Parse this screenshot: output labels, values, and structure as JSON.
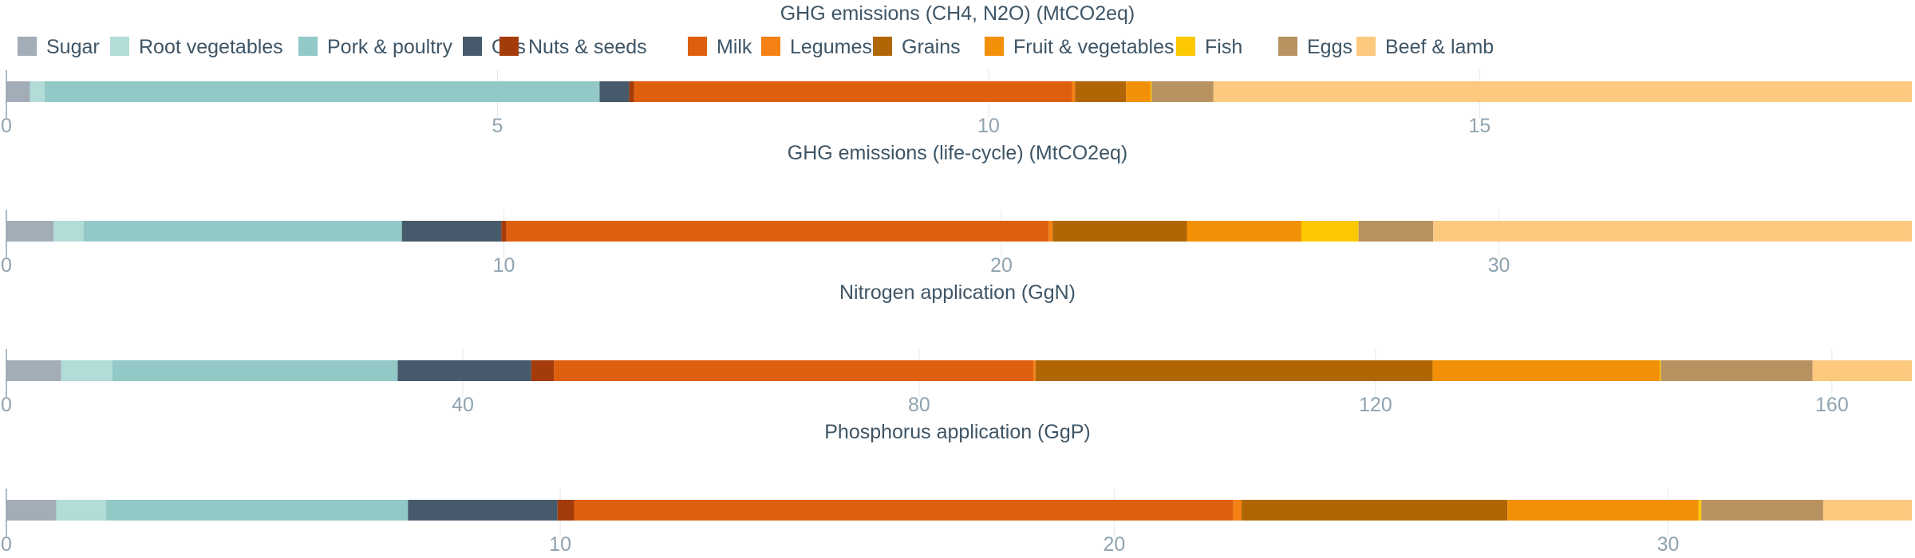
{
  "legend": [
    {
      "name": "Sugar",
      "color": "#a3adb8"
    },
    {
      "name": "Root vegetables",
      "color": "#b2dcd8"
    },
    {
      "name": "Pork & poultry",
      "color": "#92c8c6"
    },
    {
      "name": "Oils",
      "color": "#465a6c"
    },
    {
      "name": "Nuts & seeds",
      "color": "#a33b0a"
    },
    {
      "name": "Milk",
      "color": "#de5f0d"
    },
    {
      "name": "Legumes",
      "color": "#f58114"
    },
    {
      "name": "Grains",
      "color": "#b06605"
    },
    {
      "name": "Fruit & vegetables",
      "color": "#f29108"
    },
    {
      "name": "Fish",
      "color": "#fcc900"
    },
    {
      "name": "Eggs",
      "color": "#b89260"
    },
    {
      "name": "Beef & lamb",
      "color": "#fcc97f"
    }
  ],
  "chart_data": [
    {
      "type": "bar",
      "orientation": "horizontal-stacked",
      "title": "GHG emissions (CH4, N2O) (MtCO2eq)",
      "xlim": [
        0,
        19.4
      ],
      "ticks": [
        0,
        5,
        10,
        15
      ],
      "categories": [
        "Sugar",
        "Root vegetables",
        "Pork & poultry",
        "Oils",
        "Nuts & seeds",
        "Milk",
        "Legumes",
        "Grains",
        "Fruit & vegetables",
        "Fish",
        "Eggs",
        "Beef & lamb"
      ],
      "values": [
        0.24,
        0.15,
        5.65,
        0.3,
        0.05,
        4.46,
        0.03,
        0.52,
        0.25,
        0.01,
        0.63,
        7.11
      ]
    },
    {
      "type": "bar",
      "orientation": "horizontal-stacked",
      "title": "GHG emissions (life-cycle) (MtCO2eq)",
      "xlim": [
        0,
        38.3
      ],
      "ticks": [
        0,
        10,
        20,
        30
      ],
      "categories": [
        "Sugar",
        "Root vegetables",
        "Pork & poultry",
        "Oils",
        "Nuts & seeds",
        "Milk",
        "Legumes",
        "Grains",
        "Fruit & vegetables",
        "Fish",
        "Eggs",
        "Beef & lamb"
      ],
      "values": [
        0.95,
        0.6,
        6.4,
        2.0,
        0.1,
        10.9,
        0.08,
        2.7,
        2.3,
        1.15,
        1.5,
        9.62
      ]
    },
    {
      "type": "bar",
      "orientation": "horizontal-stacked",
      "title": "Nitrogen application (GgN)",
      "xlim": [
        0,
        167
      ],
      "ticks": [
        0,
        40,
        80,
        120,
        160
      ],
      "categories": [
        "Sugar",
        "Root vegetables",
        "Pork & poultry",
        "Oils",
        "Nuts & seeds",
        "Milk",
        "Legumes",
        "Grains",
        "Fruit & vegetables",
        "Fish",
        "Eggs",
        "Beef & lamb"
      ],
      "values": [
        4.8,
        4.5,
        25.0,
        11.7,
        2.0,
        42.0,
        0.2,
        34.8,
        19.9,
        0.1,
        13.3,
        8.7
      ]
    },
    {
      "type": "bar",
      "orientation": "horizontal-stacked",
      "title": "Phosphorus application (GgP)",
      "xlim": [
        0,
        34.4
      ],
      "ticks": [
        0,
        10,
        20,
        30
      ],
      "categories": [
        "Sugar",
        "Root vegetables",
        "Pork & poultry",
        "Oils",
        "Nuts & seeds",
        "Milk",
        "Legumes",
        "Grains",
        "Fruit & vegetables",
        "Fish",
        "Eggs",
        "Beef & lamb"
      ],
      "values": [
        0.9,
        0.9,
        5.45,
        2.7,
        0.3,
        11.9,
        0.15,
        4.8,
        3.45,
        0.05,
        2.2,
        1.6
      ]
    }
  ]
}
